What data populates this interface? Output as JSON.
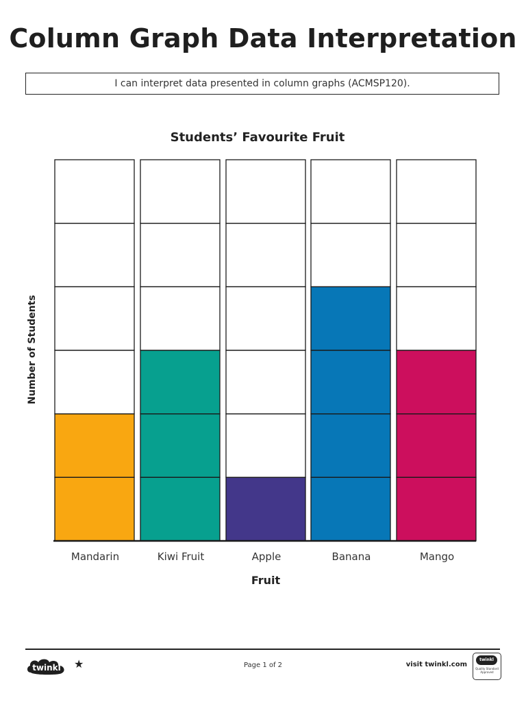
{
  "page": {
    "title": "Column Graph Data Interpretation",
    "objective": "I can interpret data presented in column graphs (ACMSP120)."
  },
  "chart_data": {
    "type": "bar",
    "title": "Students’ Favourite Fruit",
    "xlabel": "Fruit",
    "ylabel": "Number of Students",
    "categories": [
      "Mandarin",
      "Kiwi Fruit",
      "Apple",
      "Banana",
      "Mango"
    ],
    "values": [
      2,
      3,
      1,
      4,
      3
    ],
    "ylim": [
      0,
      6
    ],
    "colors": [
      "#f9a711",
      "#07a08f",
      "#43378a",
      "#0777b7",
      "#cc0f5d"
    ],
    "grid": true,
    "legend": "none"
  },
  "footer": {
    "logo_text": "twinkl",
    "page_number": "Page 1 of 2",
    "visit": "visit twinkl.com",
    "badge_top": "twinkl",
    "badge_text": "Quality Standard Approved"
  },
  "icons": {
    "logo": "twinkl-cloud-logo",
    "star": "star-icon",
    "badge": "quality-standard-badge-icon"
  }
}
